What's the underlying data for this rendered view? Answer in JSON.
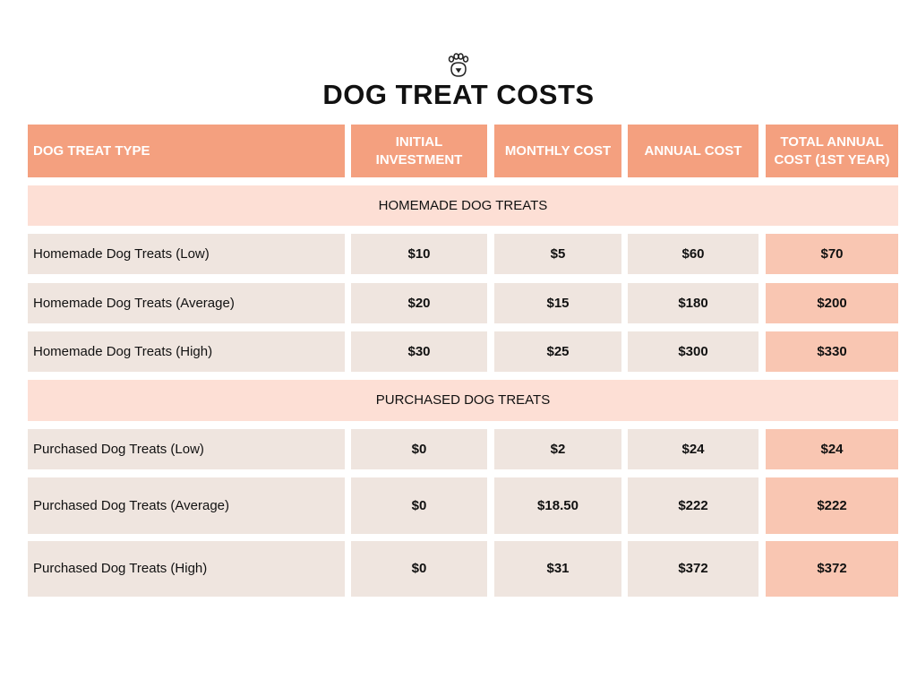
{
  "title": "DOG TREAT COSTS",
  "table": {
    "header": [
      "DOG TREAT TYPE",
      "INITIAL INVESTMENT",
      "MONTHLY COST",
      "ANNUAL COST",
      "TOTAL ANNUAL COST (1ST YEAR)"
    ],
    "sections": [
      {
        "label": "HOMEMADE DOG TREATS",
        "rows": [
          [
            "Homemade Dog Treats (Low)",
            "$10",
            "$5",
            "$60",
            "$70"
          ],
          [
            "Homemade Dog Treats (Average)",
            "$20",
            "$15",
            "$180",
            "$200"
          ],
          [
            "Homemade Dog Treats (High)",
            "$30",
            "$25",
            "$300",
            "$330"
          ]
        ]
      },
      {
        "label": "PURCHASED DOG TREATS",
        "rows": [
          [
            "Purchased Dog Treats (Low)",
            "$0",
            "$2",
            "$24",
            "$24"
          ],
          [
            "Purchased Dog Treats (Average)",
            "$0",
            "$18.50",
            "$222",
            "$222"
          ],
          [
            "Purchased Dog Treats (High)",
            "$0",
            "$31",
            "$372",
            "$372"
          ]
        ]
      }
    ]
  }
}
